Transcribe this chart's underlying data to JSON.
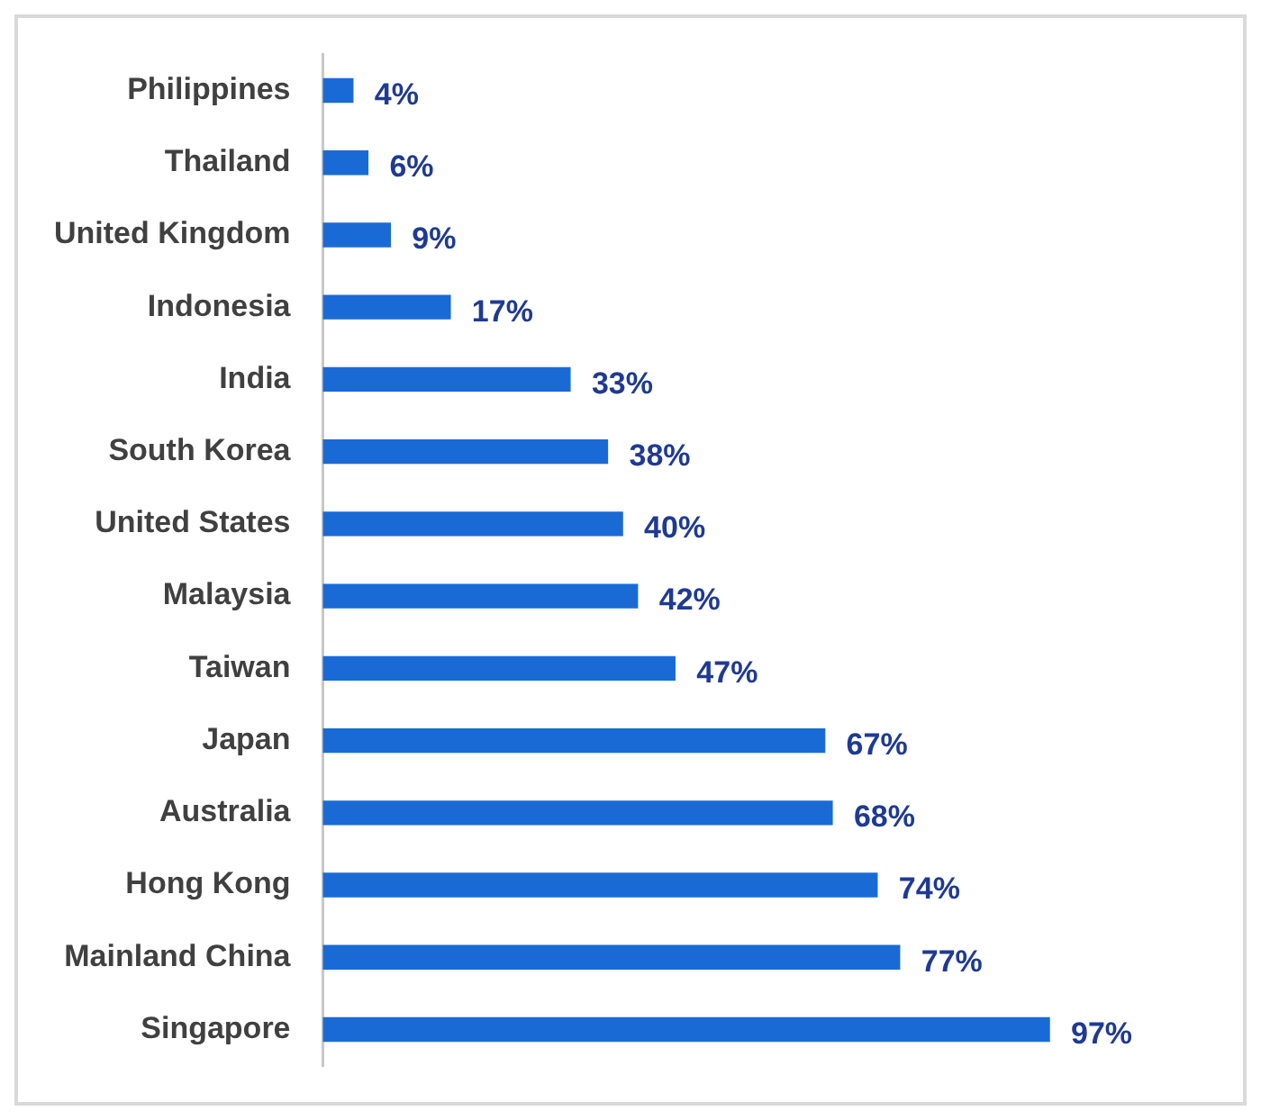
{
  "chart_data": {
    "type": "bar",
    "orientation": "horizontal",
    "categories": [
      "Philippines",
      "Thailand",
      "United Kingdom",
      "Indonesia",
      "India",
      "South Korea",
      "United States",
      "Malaysia",
      "Taiwan",
      "Japan",
      "Australia",
      "Hong Kong",
      "Mainland China",
      "Singapore"
    ],
    "values": [
      4,
      6,
      9,
      17,
      33,
      38,
      40,
      42,
      47,
      67,
      68,
      74,
      77,
      97
    ],
    "value_labels": [
      "4%",
      "6%",
      "9%",
      "17%",
      "33%",
      "38%",
      "40%",
      "42%",
      "47%",
      "67%",
      "68%",
      "74%",
      "77%",
      "97%"
    ],
    "color": "#1a6ad6",
    "legend": false
  }
}
